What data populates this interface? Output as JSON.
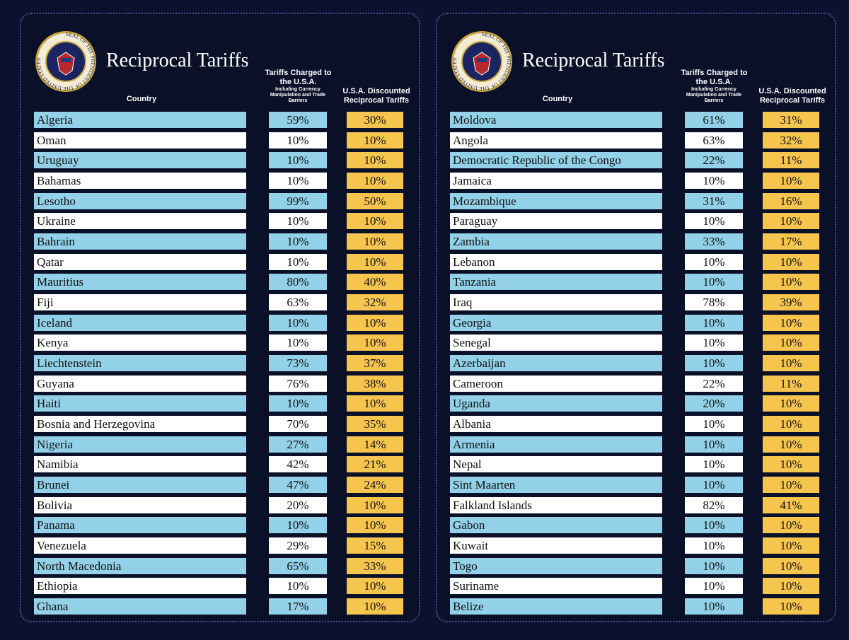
{
  "panels": [
    {
      "title": "Reciprocal Tariffs",
      "seal": "SEAL OF THE PRESIDENT OF THE UNITED STATES",
      "headers": {
        "country": "Country",
        "charged": "Tariffs Charged to the U.S.A.",
        "charged_note": "Including Currency Manipulation and Trade Barriers",
        "discounted": "U.S.A. Discounted Reciprocal Tariffs"
      },
      "rows": [
        [
          "Algeria",
          "59%",
          "30%"
        ],
        [
          "Oman",
          "10%",
          "10%"
        ],
        [
          "Uruguay",
          "10%",
          "10%"
        ],
        [
          "Bahamas",
          "10%",
          "10%"
        ],
        [
          "Lesotho",
          "99%",
          "50%"
        ],
        [
          "Ukraine",
          "10%",
          "10%"
        ],
        [
          "Bahrain",
          "10%",
          "10%"
        ],
        [
          "Qatar",
          "10%",
          "10%"
        ],
        [
          "Mauritius",
          "80%",
          "40%"
        ],
        [
          "Fiji",
          "63%",
          "32%"
        ],
        [
          "Iceland",
          "10%",
          "10%"
        ],
        [
          "Kenya",
          "10%",
          "10%"
        ],
        [
          "Liechtenstein",
          "73%",
          "37%"
        ],
        [
          "Guyana",
          "76%",
          "38%"
        ],
        [
          "Haiti",
          "10%",
          "10%"
        ],
        [
          "Bosnia and Herzegovina",
          "70%",
          "35%"
        ],
        [
          "Nigeria",
          "27%",
          "14%"
        ],
        [
          "Namibia",
          "42%",
          "21%"
        ],
        [
          "Brunei",
          "47%",
          "24%"
        ],
        [
          "Bolivia",
          "20%",
          "10%"
        ],
        [
          "Panama",
          "10%",
          "10%"
        ],
        [
          "Venezuela",
          "29%",
          "15%"
        ],
        [
          "North Macedonia",
          "65%",
          "33%"
        ],
        [
          "Ethiopia",
          "10%",
          "10%"
        ],
        [
          "Ghana",
          "17%",
          "10%"
        ]
      ]
    },
    {
      "title": "Reciprocal Tariffs",
      "seal": "SEAL OF THE PRESIDENT OF THE UNITED STATES",
      "headers": {
        "country": "Country",
        "charged": "Tariffs Charged to the U.S.A.",
        "charged_note": "Including Currency Manipulation and Trade Barriers",
        "discounted": "U.S.A. Discounted Reciprocal Tariffs"
      },
      "rows": [
        [
          "Moldova",
          "61%",
          "31%"
        ],
        [
          "Angola",
          "63%",
          "32%"
        ],
        [
          "Democratic Republic of the Congo",
          "22%",
          "11%"
        ],
        [
          "Jamaica",
          "10%",
          "10%"
        ],
        [
          "Mozambique",
          "31%",
          "16%"
        ],
        [
          "Paraguay",
          "10%",
          "10%"
        ],
        [
          "Zambia",
          "33%",
          "17%"
        ],
        [
          "Lebanon",
          "10%",
          "10%"
        ],
        [
          "Tanzania",
          "10%",
          "10%"
        ],
        [
          "Iraq",
          "78%",
          "39%"
        ],
        [
          "Georgia",
          "10%",
          "10%"
        ],
        [
          "Senegal",
          "10%",
          "10%"
        ],
        [
          "Azerbaijan",
          "10%",
          "10%"
        ],
        [
          "Cameroon",
          "22%",
          "11%"
        ],
        [
          "Uganda",
          "20%",
          "10%"
        ],
        [
          "Albania",
          "10%",
          "10%"
        ],
        [
          "Armenia",
          "10%",
          "10%"
        ],
        [
          "Nepal",
          "10%",
          "10%"
        ],
        [
          "Sint Maarten",
          "10%",
          "10%"
        ],
        [
          "Falkland Islands",
          "82%",
          "41%"
        ],
        [
          "Gabon",
          "10%",
          "10%"
        ],
        [
          "Kuwait",
          "10%",
          "10%"
        ],
        [
          "Togo",
          "10%",
          "10%"
        ],
        [
          "Suriname",
          "10%",
          "10%"
        ],
        [
          "Belize",
          "10%",
          "10%"
        ]
      ]
    }
  ]
}
